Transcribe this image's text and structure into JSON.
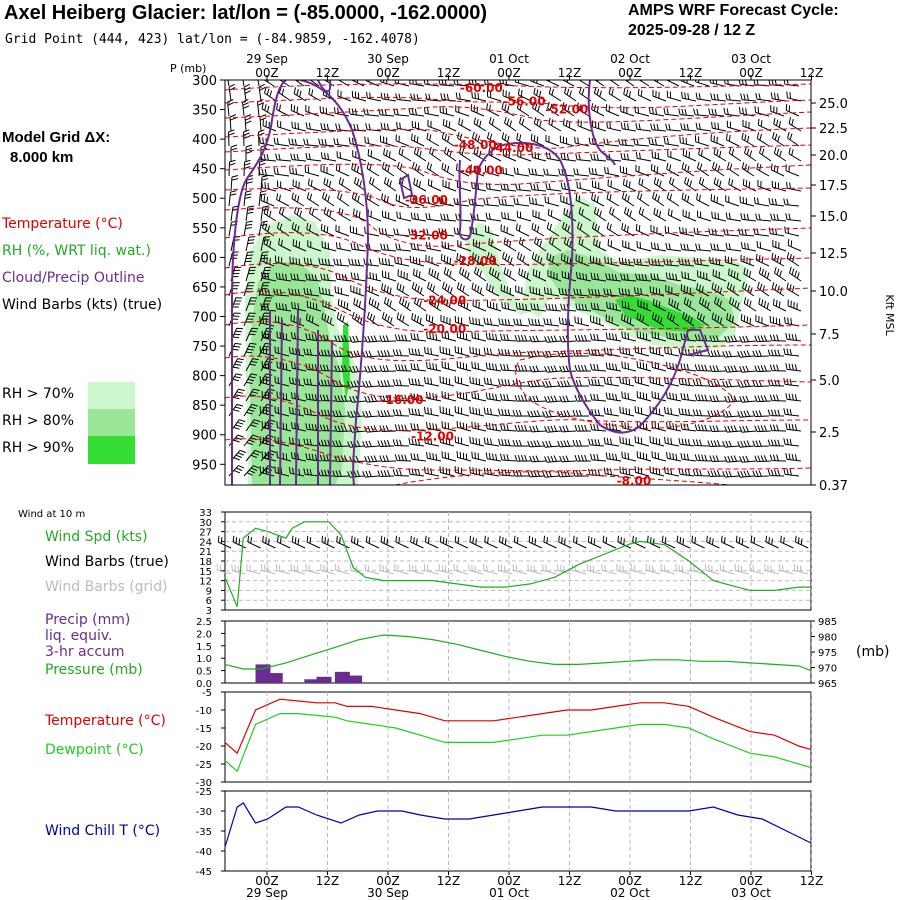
{
  "header": {
    "title": "Axel Heiberg Glacier:  lat/lon = (-85.0000, -162.0000)",
    "grid_point": "Grid Point (444, 423) lat/lon = (-84.9859, -162.4078)",
    "cycle_title": "AMPS WRF Forecast Cycle:",
    "cycle_time": "2025-09-28 / 12  Z"
  },
  "model_grid": {
    "line1": "Model Grid ΔX:",
    "line2": "8.000 km"
  },
  "legend": {
    "temperature": "Temperature (°C)",
    "rh": "RH (%, WRT liq. wat.)",
    "cloud": "Cloud/Precip Outline",
    "wind": "Wind Barbs (kts) (true)",
    "rh70": "RH > 70%",
    "rh80": "RH > 80%",
    "rh90": "RH > 90%"
  },
  "colors": {
    "temperature": "#e00000",
    "rh_label": "#22aa22",
    "cloud": "#6a2c91",
    "rh70": "#ccf7cc",
    "rh80": "#99e699",
    "rh90": "#33dd33",
    "wind_spd": "#22aa22",
    "dewpoint": "#22cc22",
    "wind_chill": "#0000aa",
    "precip": "#6a2c91",
    "grey": "#bbbbbb"
  },
  "time_axis": {
    "ticks": [
      "00Z",
      "12Z",
      "00Z",
      "12Z",
      "00Z",
      "12Z",
      "00Z",
      "12Z",
      "00Z",
      "12Z"
    ],
    "dates": [
      "29 Sep",
      "30 Sep",
      "01 Oct",
      "02 Oct",
      "03 Oct"
    ]
  },
  "chart_data": [
    {
      "type": "heatmap",
      "ylabel": "P (mb)",
      "ylabel_right": "Kft MSL",
      "pressure_ticks": [
        "300",
        "350",
        "400",
        "450",
        "500",
        "550",
        "600",
        "650",
        "700",
        "750",
        "800",
        "850",
        "900",
        "950"
      ],
      "height_ticks": [
        "25.0",
        "22.5",
        "20.0",
        "17.5",
        "15.0",
        "12.5",
        "10.0",
        "7.5",
        "5.0",
        "2.5",
        "0.37"
      ],
      "temperature_labels": [
        {
          "text": "-60.00",
          "p": 320,
          "t": 42
        },
        {
          "text": "-56.00",
          "p": 343,
          "t": 49
        },
        {
          "text": "-52.00",
          "p": 357,
          "t": 56
        },
        {
          "text": "-48.00",
          "p": 417,
          "t": 41
        },
        {
          "text": "-44.00",
          "p": 422,
          "t": 47
        },
        {
          "text": "-40.00",
          "p": 460,
          "t": 42
        },
        {
          "text": "-36.00",
          "p": 510,
          "t": 33
        },
        {
          "text": "-32.00",
          "p": 570,
          "t": 33
        },
        {
          "text": "-28.00",
          "p": 613,
          "t": 41
        },
        {
          "text": "-24.00",
          "p": 680,
          "t": 36
        },
        {
          "text": "-20.00",
          "p": 728,
          "t": 36
        },
        {
          "text": "-16.00",
          "p": 848,
          "t": 29
        },
        {
          "text": "-12.00",
          "p": 910,
          "t": 34
        },
        {
          "text": "-8.00",
          "p": 985,
          "t": 67
        }
      ]
    },
    {
      "type": "line",
      "panel": "wind",
      "title": "Wind at 10 m",
      "series_label": "Wind Spd (kts)",
      "barbs_true_label": "Wind Barbs (true)",
      "barbs_grid_label": "Wind Barbs (grid)",
      "yticks": [
        "33",
        "30",
        "27",
        "24",
        "21",
        "18",
        "15",
        "12",
        "9",
        "6",
        "3"
      ],
      "ylim": [
        3,
        33
      ],
      "x": [
        0,
        2,
        3,
        5,
        7,
        10,
        11,
        13,
        17,
        19,
        21,
        23,
        26,
        30,
        34,
        38,
        42,
        46,
        50,
        54,
        58,
        62,
        66,
        68,
        72,
        76,
        80,
        82,
        86,
        90,
        94,
        96
      ],
      "values": [
        13,
        4,
        25,
        28,
        27,
        25,
        28,
        30,
        30,
        26,
        16,
        13,
        12,
        12,
        12,
        11,
        10,
        10,
        11,
        13,
        17,
        20,
        23,
        24,
        23,
        18,
        12,
        11,
        9,
        9,
        10,
        10
      ]
    },
    {
      "type": "line",
      "panel": "pressure",
      "precip_label": [
        "Precip (mm)",
        "liq. equiv.",
        "3-hr accum"
      ],
      "pressure_label": "Pressure (mb)",
      "unit_right": "(mb)",
      "yticks_left": [
        "2.5",
        "2.0",
        "1.5",
        "1.0",
        "0.5",
        "0.0"
      ],
      "yticks_right": [
        "985",
        "980",
        "975",
        "970",
        "965"
      ],
      "pressure_ylim": [
        965,
        985
      ],
      "x": [
        0,
        3,
        6,
        10,
        14,
        18,
        22,
        26,
        30,
        34,
        38,
        42,
        46,
        50,
        54,
        58,
        62,
        66,
        70,
        74,
        78,
        82,
        86,
        90,
        94,
        96
      ],
      "pressure": [
        971,
        969.5,
        969.5,
        971.5,
        974,
        976.5,
        979,
        980.5,
        980,
        979,
        977.5,
        975.5,
        973.5,
        972,
        971,
        971,
        971.5,
        972,
        972.5,
        972.5,
        972,
        972,
        971.5,
        971,
        970.5,
        969
      ],
      "precip_x": [
        5,
        7,
        13,
        15,
        18,
        20
      ],
      "precip": [
        0.75,
        0.4,
        0.15,
        0.25,
        0.45,
        0.3
      ],
      "precip_ylim": [
        0,
        2.5
      ]
    },
    {
      "type": "line",
      "panel": "temperature",
      "series": [
        {
          "name": "Temperature (°C)",
          "values": [
            -19,
            -22,
            -10,
            -7,
            -7.5,
            -8,
            -8,
            -9,
            -9,
            -10,
            -11,
            -13,
            -13,
            -13,
            -12,
            -11,
            -10,
            -10,
            -9,
            -8,
            -8,
            -9,
            -12,
            -16,
            -17,
            -20,
            -21
          ]
        },
        {
          "name": "Dewpoint (°C)",
          "values": [
            -24,
            -27,
            -14,
            -11,
            -11,
            -11.5,
            -12,
            -13,
            -14,
            -15,
            -17,
            -19,
            -19,
            -19,
            -18,
            -17,
            -17,
            -16,
            -15,
            -14,
            -14,
            -15,
            -18,
            -22,
            -23,
            -25,
            -26
          ]
        }
      ],
      "x": [
        0,
        2,
        5,
        9,
        12,
        15,
        18,
        20,
        24,
        28,
        32,
        36,
        40,
        44,
        48,
        52,
        56,
        60,
        64,
        68,
        72,
        76,
        80,
        86,
        90,
        94,
        96
      ],
      "yticks": [
        "-5",
        "-10",
        "-15",
        "-20",
        "-25",
        "-30"
      ],
      "ylim": [
        -30,
        -5
      ]
    },
    {
      "type": "line",
      "panel": "windchill",
      "series_label": "Wind Chill T (°C)",
      "yticks": [
        "-25",
        "-30",
        "-35",
        "-40",
        "-45"
      ],
      "ylim": [
        -45,
        -25
      ],
      "x": [
        0,
        2,
        3,
        5,
        7,
        10,
        12,
        15,
        19,
        22,
        25,
        29,
        32,
        36,
        40,
        44,
        48,
        52,
        56,
        60,
        64,
        68,
        72,
        76,
        80,
        84,
        88,
        92,
        96
      ],
      "values": [
        -39,
        -29,
        -28,
        -33,
        -32,
        -29,
        -29,
        -31,
        -33,
        -31,
        -30,
        -30,
        -31,
        -32,
        -32,
        -31,
        -30,
        -29,
        -29,
        -29,
        -30,
        -30,
        -30,
        -30,
        -29,
        -31,
        -32,
        -35,
        -38
      ]
    }
  ]
}
